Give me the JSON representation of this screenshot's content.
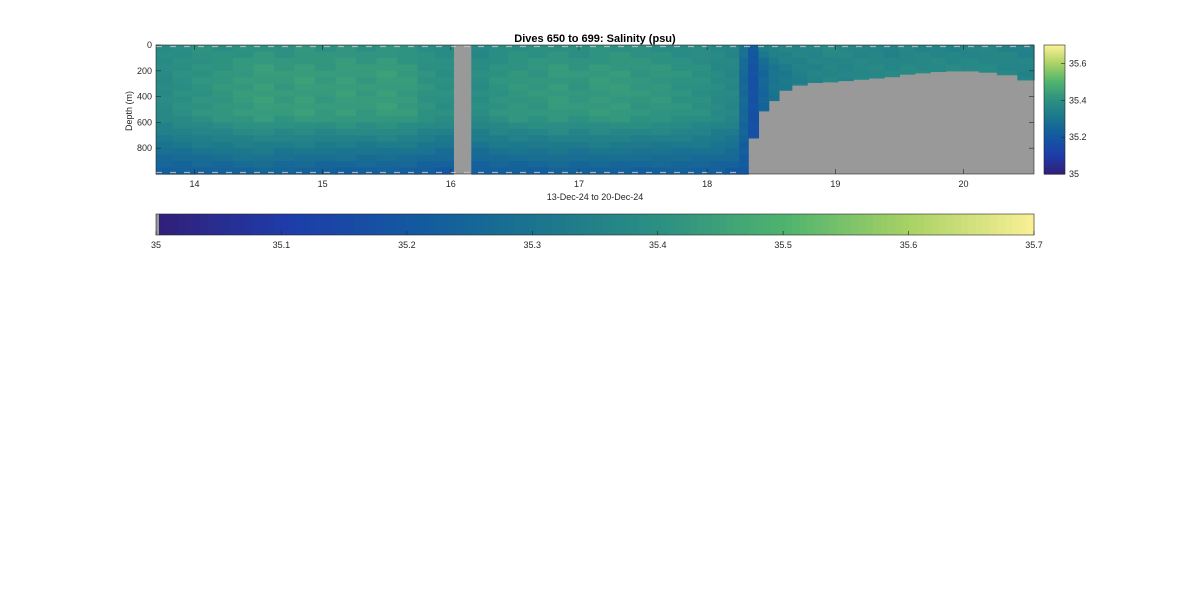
{
  "chart_data": {
    "type": "heatmap",
    "title": "Dives 650 to 699: Salinity (psu)",
    "xlabel": "13-Dec-24 to 20-Dec-24",
    "ylabel": "Depth (m)",
    "x_ticks": [
      14,
      15,
      16,
      17,
      18,
      19,
      20
    ],
    "xlim": [
      13.7,
      20.55
    ],
    "y_ticks": [
      0,
      200,
      400,
      600,
      800
    ],
    "ylim": [
      0,
      1000
    ],
    "y_reversed": true,
    "colormap": "parula",
    "clim": [
      35.0,
      35.7
    ],
    "colorbar_ticks": [
      35,
      35.2,
      35.4,
      35.6
    ],
    "colorbar_ticks_horizontal": [
      35,
      35.1,
      35.2,
      35.3,
      35.4,
      35.5,
      35.6,
      35.7
    ],
    "no_data_color": "#999999",
    "profiles": {
      "x_start": [
        13.7,
        13.83,
        13.98,
        14.14,
        14.3,
        14.46,
        14.62,
        14.78,
        14.94,
        15.1,
        15.26,
        15.42,
        15.58,
        15.74,
        15.88,
        16.02,
        16.16,
        16.3,
        16.45,
        16.6,
        16.76,
        16.92,
        17.08,
        17.24,
        17.4,
        17.56,
        17.72,
        17.88,
        18.03,
        18.14,
        18.25,
        18.32,
        18.4,
        18.48,
        18.56,
        18.66,
        18.78,
        18.9,
        19.02,
        19.14,
        19.26,
        19.38,
        19.5,
        19.62,
        19.74,
        19.86,
        19.98,
        20.12,
        20.26,
        20.42
      ],
      "x_end": [
        13.83,
        13.98,
        14.14,
        14.3,
        14.46,
        14.62,
        14.78,
        14.94,
        15.1,
        15.26,
        15.42,
        15.58,
        15.74,
        15.88,
        16.02,
        16.16,
        16.3,
        16.45,
        16.6,
        16.76,
        16.92,
        17.08,
        17.24,
        17.4,
        17.56,
        17.72,
        17.88,
        18.03,
        18.14,
        18.25,
        18.32,
        18.4,
        18.48,
        18.56,
        18.66,
        18.78,
        18.9,
        19.02,
        19.14,
        19.26,
        19.38,
        19.5,
        19.62,
        19.74,
        19.86,
        19.98,
        20.12,
        20.26,
        20.42,
        20.55
      ],
      "max_depth": [
        1000,
        1000,
        1000,
        1000,
        1000,
        1000,
        1000,
        1000,
        1000,
        1000,
        1000,
        1000,
        1000,
        1000,
        1000,
        null,
        1000,
        1000,
        1000,
        1000,
        1000,
        1000,
        1000,
        1000,
        1000,
        1000,
        1000,
        1000,
        1000,
        1000,
        1000,
        720,
        510,
        430,
        350,
        310,
        290,
        285,
        275,
        265,
        255,
        245,
        225,
        215,
        205,
        200,
        200,
        210,
        230,
        270
      ],
      "surface_salinity": [
        35.39,
        35.39,
        35.4,
        35.39,
        35.4,
        35.41,
        35.4,
        35.41,
        35.4,
        35.41,
        35.4,
        35.41,
        35.4,
        35.39,
        35.38,
        null,
        35.37,
        35.38,
        35.39,
        35.39,
        35.4,
        35.39,
        35.4,
        35.4,
        35.4,
        35.39,
        35.38,
        35.38,
        35.37,
        35.36,
        35.3,
        35.22,
        35.34,
        35.36,
        35.37,
        35.37,
        35.37,
        35.38,
        35.37,
        35.36,
        35.36,
        35.35,
        35.36,
        35.35,
        35.35,
        35.35,
        35.36,
        35.36,
        35.35,
        35.34
      ],
      "mid_salinity": [
        35.38,
        35.4,
        35.41,
        35.42,
        35.43,
        35.44,
        35.43,
        35.44,
        35.43,
        35.44,
        35.43,
        35.44,
        35.43,
        35.41,
        35.4,
        null,
        35.39,
        35.41,
        35.42,
        35.42,
        35.43,
        35.42,
        35.43,
        35.43,
        35.42,
        35.42,
        35.41,
        35.4,
        35.38,
        35.37,
        35.26,
        35.18,
        35.25,
        35.3,
        35.32,
        35.34,
        35.35,
        35.36,
        35.36,
        35.37,
        35.37,
        35.37,
        35.38,
        35.38,
        35.38,
        35.38,
        35.38,
        35.38,
        35.37,
        35.36
      ],
      "bottom_salinity": [
        35.22,
        35.22,
        35.23,
        35.23,
        35.24,
        35.24,
        35.23,
        35.23,
        35.22,
        35.22,
        35.22,
        35.22,
        35.22,
        35.21,
        35.2,
        null,
        35.21,
        35.22,
        35.22,
        35.22,
        35.23,
        35.22,
        35.23,
        35.22,
        35.22,
        35.22,
        35.22,
        35.22,
        35.22,
        35.21,
        35.2,
        35.17,
        35.22,
        35.28,
        35.3,
        35.32,
        35.33,
        35.34,
        35.35,
        35.35,
        35.35,
        35.35,
        35.36,
        35.36,
        35.36,
        35.36,
        35.36,
        35.36,
        35.35,
        35.34
      ]
    }
  }
}
